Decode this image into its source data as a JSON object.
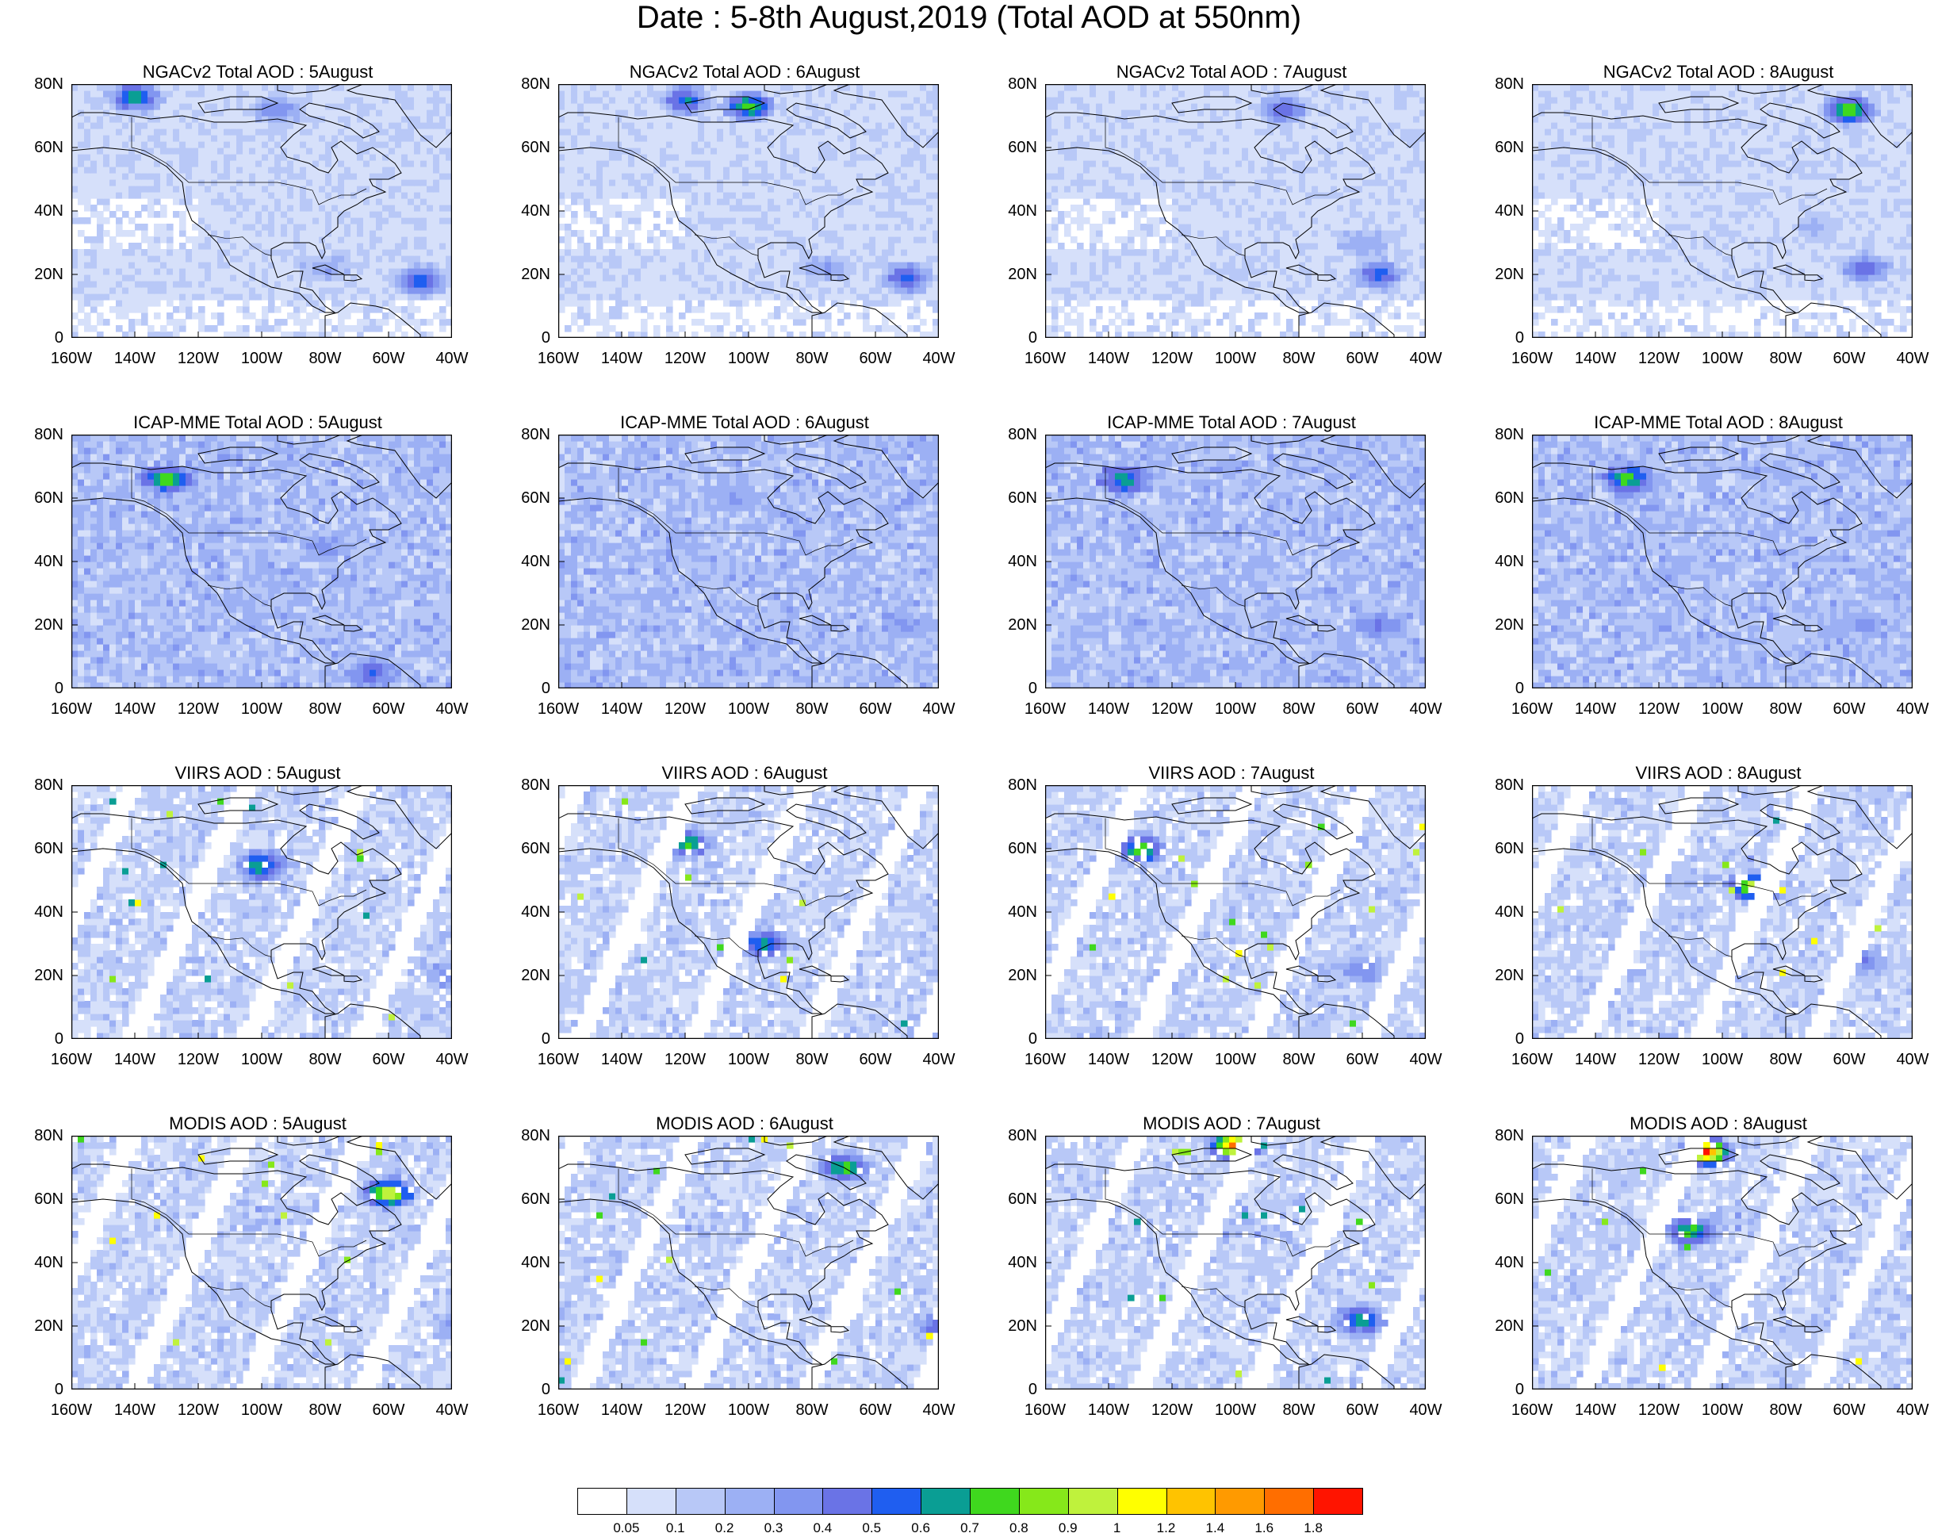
{
  "title": "Date : 5-8th August,2019 (Total AOD at 550nm)",
  "panels": [
    {
      "title": "NGACv2 Total AOD : 5August"
    },
    {
      "title": "NGACv2 Total AOD : 6August"
    },
    {
      "title": "NGACv2 Total AOD : 7August"
    },
    {
      "title": "NGACv2 Total AOD : 8August"
    },
    {
      "title": "ICAP-MME Total AOD : 5August"
    },
    {
      "title": "ICAP-MME Total AOD : 6August"
    },
    {
      "title": "ICAP-MME Total AOD : 7August"
    },
    {
      "title": "ICAP-MME Total AOD : 8August"
    },
    {
      "title": "VIIRS AOD : 5August"
    },
    {
      "title": "VIIRS AOD : 6August"
    },
    {
      "title": "VIIRS AOD : 7August"
    },
    {
      "title": "VIIRS AOD : 8August"
    },
    {
      "title": "MODIS AOD : 5August"
    },
    {
      "title": "MODIS AOD : 6August"
    },
    {
      "title": "MODIS AOD : 7August"
    },
    {
      "title": "MODIS AOD : 8August"
    }
  ],
  "axes": {
    "x_ticks": [
      "160W",
      "140W",
      "120W",
      "100W",
      "80W",
      "60W",
      "40W"
    ],
    "y_ticks": [
      "80N",
      "60N",
      "40N",
      "20N",
      "0"
    ]
  },
  "chart_data": {
    "type": "heatmap",
    "xlim": [
      -160,
      -40
    ],
    "ylim": [
      0,
      80
    ],
    "grid": false,
    "colorbar": {
      "labels": [
        "0.05",
        "0.1",
        "0.2",
        "0.3",
        "0.4",
        "0.5",
        "0.6",
        "0.7",
        "0.8",
        "0.9",
        "1",
        "1.2",
        "1.4",
        "1.6",
        "1.8"
      ],
      "colors": [
        "#ffffff",
        "#d6e0fa",
        "#b8c8f7",
        "#9cb0f4",
        "#8296f0",
        "#6a73e6",
        "#1f5ef0",
        "#0a9e94",
        "#3fd81e",
        "#86e81a",
        "#bff23c",
        "#ffff00",
        "#ffc300",
        "#ff9a00",
        "#ff6e00",
        "#ff1400"
      ]
    },
    "features": {
      "NGACv2": [
        [
          {
            "lon": -50,
            "lat": 18,
            "level": 7
          },
          {
            "lon": -80,
            "lat": 22,
            "level": 4
          },
          {
            "lon": -140,
            "lat": 76,
            "level": 8
          },
          {
            "lon": -95,
            "lat": 72,
            "level": 5
          }
        ],
        [
          {
            "lon": -50,
            "lat": 19,
            "level": 7
          },
          {
            "lon": -100,
            "lat": 73,
            "level": 9
          },
          {
            "lon": -120,
            "lat": 75,
            "level": 7
          },
          {
            "lon": -75,
            "lat": 22,
            "level": 4
          }
        ],
        [
          {
            "lon": -55,
            "lat": 20,
            "level": 7
          },
          {
            "lon": -85,
            "lat": 72,
            "level": 6
          },
          {
            "lon": -60,
            "lat": 30,
            "level": 4
          }
        ],
        [
          {
            "lon": -55,
            "lat": 22,
            "level": 6
          },
          {
            "lon": -60,
            "lat": 72,
            "level": 10
          },
          {
            "lon": -70,
            "lat": 35,
            "level": 3
          }
        ]
      ],
      "ICAP-MME": [
        [
          {
            "lon": -130,
            "lat": 66,
            "level": 9
          },
          {
            "lon": -65,
            "lat": 5,
            "level": 6
          },
          {
            "lon": -80,
            "lat": 45,
            "level": 4
          }
        ],
        [
          {
            "lon": -50,
            "lat": 20,
            "level": 4
          },
          {
            "lon": -105,
            "lat": 60,
            "level": 4
          }
        ],
        [
          {
            "lon": -135,
            "lat": 66,
            "level": 8
          },
          {
            "lon": -55,
            "lat": 20,
            "level": 5
          }
        ],
        [
          {
            "lon": -130,
            "lat": 66,
            "level": 9
          },
          {
            "lon": -55,
            "lat": 20,
            "level": 4
          }
        ]
      ],
      "VIIRS": [
        [
          {
            "lon": -100,
            "lat": 55,
            "level": 8
          },
          {
            "lon": -40,
            "lat": 20,
            "level": 5
          }
        ],
        [
          {
            "lon": -120,
            "lat": 62,
            "level": 9
          },
          {
            "lon": -95,
            "lat": 30,
            "level": 8
          }
        ],
        [
          {
            "lon": -130,
            "lat": 60,
            "level": 9
          },
          {
            "lon": -60,
            "lat": 22,
            "level": 5
          }
        ],
        [
          {
            "lon": -90,
            "lat": 48,
            "level": 11
          },
          {
            "lon": -55,
            "lat": 25,
            "level": 5
          }
        ]
      ],
      "MODIS": [
        [
          {
            "lon": -60,
            "lat": 62,
            "level": 12
          },
          {
            "lon": -40,
            "lat": 20,
            "level": 4
          }
        ],
        [
          {
            "lon": -40,
            "lat": 20,
            "level": 6
          },
          {
            "lon": -70,
            "lat": 70,
            "level": 9
          }
        ],
        [
          {
            "lon": -100,
            "lat": 77,
            "level": 15
          },
          {
            "lon": -60,
            "lat": 22,
            "level": 8
          }
        ],
        [
          {
            "lon": -105,
            "lat": 75,
            "level": 15
          },
          {
            "lon": -110,
            "lat": 50,
            "level": 9
          }
        ]
      ]
    }
  }
}
